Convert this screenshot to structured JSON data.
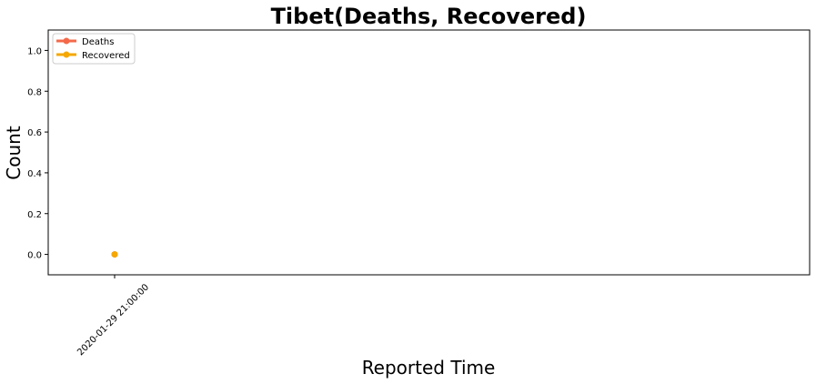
{
  "chart_data": {
    "type": "line",
    "title": "Tibet(Deaths, Recovered)",
    "xlabel": "Reported Time",
    "ylabel": "Count",
    "x": [
      "2020-01-29 21:00:00"
    ],
    "series": [
      {
        "name": "Deaths",
        "values": [
          0
        ],
        "color": "#f4694a"
      },
      {
        "name": "Recovered",
        "values": [
          0
        ],
        "color": "#f5a800"
      }
    ],
    "ylim": [
      -0.1,
      1.1
    ],
    "yticks": [
      "0.0",
      "0.2",
      "0.4",
      "0.6",
      "0.8",
      "1.0"
    ],
    "ytick_values": [
      0.0,
      0.2,
      0.4,
      0.6,
      0.8,
      1.0
    ],
    "grid": false,
    "legend_position": "top-left"
  }
}
